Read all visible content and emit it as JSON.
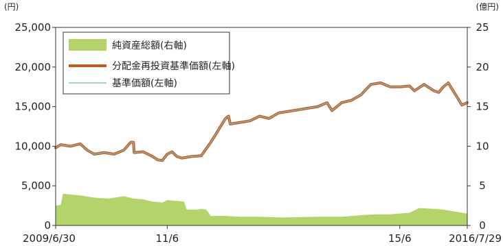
{
  "chart_data": {
    "type": "line",
    "title": "",
    "left_axis": {
      "unit_label": "(円)",
      "ylim": [
        0,
        25000
      ],
      "ticks": [
        0,
        5000,
        10000,
        15000,
        20000,
        25000
      ],
      "tick_labels": [
        "0",
        "5,000",
        "10,000",
        "15,000",
        "20,000",
        "25,000"
      ]
    },
    "right_axis": {
      "unit_label": "(億円)",
      "ylim": [
        0,
        25
      ],
      "ticks": [
        0,
        5,
        10,
        15,
        20,
        25
      ],
      "tick_labels": [
        "0",
        "5",
        "10",
        "15",
        "20",
        "25"
      ]
    },
    "x_axis": {
      "start": "2009-06-30",
      "end": "2016-07-29",
      "ticks": [
        {
          "date": "2009-06-30",
          "label": "2009/6/30"
        },
        {
          "date": "2011-06-01",
          "label": "11/6"
        },
        {
          "date": "2015-06-01",
          "label": "15/6"
        },
        {
          "date": "2016-07-29",
          "label": "2016/7/29"
        }
      ]
    },
    "grid": false,
    "legend": {
      "placement": "top-left",
      "items": [
        {
          "label": "純資産総額(右軸)",
          "kind": "area",
          "color": "#b5d36b"
        },
        {
          "label": "分配金再投資基準価額(左軸)",
          "kind": "line",
          "color": "#c8561a"
        },
        {
          "label": "基準価額(左軸)",
          "kind": "line",
          "color": "#7fc7c0"
        }
      ]
    },
    "series": [
      {
        "name": "分配金再投資基準価額(左軸)",
        "axis": "left",
        "color": "#c8561a",
        "points": [
          [
            "2009-06-30",
            9800
          ],
          [
            "2009-08-01",
            10200
          ],
          [
            "2009-10-01",
            10000
          ],
          [
            "2009-12-01",
            10300
          ],
          [
            "2010-01-15",
            9500
          ],
          [
            "2010-03-01",
            9000
          ],
          [
            "2010-05-01",
            9200
          ],
          [
            "2010-07-01",
            9000
          ],
          [
            "2010-09-01",
            9500
          ],
          [
            "2010-10-15",
            10500
          ],
          [
            "2010-11-01",
            10500
          ],
          [
            "2010-11-05",
            9200
          ],
          [
            "2011-01-01",
            9300
          ],
          [
            "2011-03-01",
            8700
          ],
          [
            "2011-04-01",
            8300
          ],
          [
            "2011-05-01",
            8200
          ],
          [
            "2011-06-01",
            9000
          ],
          [
            "2011-07-01",
            9300
          ],
          [
            "2011-08-01",
            8700
          ],
          [
            "2011-09-01",
            8500
          ],
          [
            "2011-11-01",
            8700
          ],
          [
            "2012-01-01",
            8800
          ],
          [
            "2012-03-01",
            10500
          ],
          [
            "2012-04-01",
            11500
          ],
          [
            "2012-05-01",
            12500
          ],
          [
            "2012-06-01",
            13500
          ],
          [
            "2012-06-20",
            13800
          ],
          [
            "2012-07-01",
            12800
          ],
          [
            "2012-09-01",
            13000
          ],
          [
            "2012-11-01",
            13200
          ],
          [
            "2013-01-01",
            13800
          ],
          [
            "2013-03-01",
            13500
          ],
          [
            "2013-05-01",
            14200
          ],
          [
            "2013-08-01",
            14500
          ],
          [
            "2013-11-01",
            14800
          ],
          [
            "2014-01-01",
            15000
          ],
          [
            "2014-03-01",
            15500
          ],
          [
            "2014-04-01",
            14500
          ],
          [
            "2014-06-01",
            15500
          ],
          [
            "2014-08-01",
            15800
          ],
          [
            "2014-10-01",
            16500
          ],
          [
            "2014-12-01",
            17800
          ],
          [
            "2015-02-01",
            18000
          ],
          [
            "2015-04-01",
            17500
          ],
          [
            "2015-06-01",
            17500
          ],
          [
            "2015-08-01",
            17600
          ],
          [
            "2015-09-01",
            17000
          ],
          [
            "2015-11-01",
            17800
          ],
          [
            "2016-01-01",
            17000
          ],
          [
            "2016-02-01",
            16800
          ],
          [
            "2016-03-01",
            17500
          ],
          [
            "2016-04-01",
            18000
          ],
          [
            "2016-05-01",
            17000
          ],
          [
            "2016-06-01",
            16000
          ],
          [
            "2016-06-25",
            15200
          ],
          [
            "2016-07-29",
            15500
          ]
        ]
      },
      {
        "name": "基準価額(左軸)",
        "axis": "left",
        "color": "#7fc7c0",
        "points": [
          [
            "2009-06-30",
            9800
          ],
          [
            "2009-08-01",
            10200
          ],
          [
            "2009-10-01",
            10000
          ],
          [
            "2009-12-01",
            10300
          ],
          [
            "2010-01-15",
            9500
          ],
          [
            "2010-03-01",
            9000
          ],
          [
            "2010-05-01",
            9200
          ],
          [
            "2010-07-01",
            9000
          ],
          [
            "2010-09-01",
            9500
          ],
          [
            "2010-10-15",
            10500
          ],
          [
            "2010-11-01",
            10500
          ],
          [
            "2010-11-05",
            9200
          ],
          [
            "2011-01-01",
            9300
          ],
          [
            "2011-03-01",
            8700
          ],
          [
            "2011-04-01",
            8300
          ],
          [
            "2011-05-01",
            8200
          ],
          [
            "2011-06-01",
            9000
          ],
          [
            "2011-07-01",
            9300
          ],
          [
            "2011-08-01",
            8700
          ],
          [
            "2011-09-01",
            8500
          ],
          [
            "2011-11-01",
            8700
          ],
          [
            "2012-01-01",
            8800
          ],
          [
            "2012-03-01",
            10500
          ],
          [
            "2012-04-01",
            11500
          ],
          [
            "2012-05-01",
            12500
          ],
          [
            "2012-06-01",
            13500
          ],
          [
            "2012-06-20",
            13800
          ],
          [
            "2012-07-01",
            12800
          ],
          [
            "2012-09-01",
            13000
          ],
          [
            "2012-11-01",
            13200
          ],
          [
            "2013-01-01",
            13800
          ],
          [
            "2013-03-01",
            13500
          ],
          [
            "2013-05-01",
            14200
          ],
          [
            "2013-08-01",
            14500
          ],
          [
            "2013-11-01",
            14800
          ],
          [
            "2014-01-01",
            15000
          ],
          [
            "2014-03-01",
            15500
          ],
          [
            "2014-04-01",
            14500
          ],
          [
            "2014-06-01",
            15500
          ],
          [
            "2014-08-01",
            15800
          ],
          [
            "2014-10-01",
            16500
          ],
          [
            "2014-12-01",
            17800
          ],
          [
            "2015-02-01",
            18000
          ],
          [
            "2015-04-01",
            17500
          ],
          [
            "2015-06-01",
            17500
          ],
          [
            "2015-08-01",
            17600
          ],
          [
            "2015-09-01",
            17000
          ],
          [
            "2015-11-01",
            17800
          ],
          [
            "2016-01-01",
            17000
          ],
          [
            "2016-02-01",
            16800
          ],
          [
            "2016-03-01",
            17500
          ],
          [
            "2016-04-01",
            18000
          ],
          [
            "2016-05-01",
            17000
          ],
          [
            "2016-06-01",
            16000
          ],
          [
            "2016-06-25",
            15200
          ],
          [
            "2016-07-29",
            15500
          ]
        ]
      },
      {
        "name": "純資産総額(右軸)",
        "axis": "right",
        "type": "area",
        "color": "#b5d36b",
        "points": [
          [
            "2009-06-30",
            2.5
          ],
          [
            "2009-08-01",
            2.6
          ],
          [
            "2009-08-15",
            4.0
          ],
          [
            "2009-12-01",
            3.8
          ],
          [
            "2010-01-01",
            3.7
          ],
          [
            "2010-03-01",
            3.5
          ],
          [
            "2010-06-01",
            3.4
          ],
          [
            "2010-09-01",
            3.7
          ],
          [
            "2010-11-01",
            3.4
          ],
          [
            "2011-01-01",
            3.3
          ],
          [
            "2011-03-01",
            3.0
          ],
          [
            "2011-05-01",
            2.9
          ],
          [
            "2011-06-01",
            3.2
          ],
          [
            "2011-08-01",
            3.1
          ],
          [
            "2011-09-15",
            3.0
          ],
          [
            "2011-10-01",
            2.0
          ],
          [
            "2011-12-01",
            2.0
          ],
          [
            "2012-01-01",
            2.1
          ],
          [
            "2012-02-01",
            2.0
          ],
          [
            "2012-03-01",
            1.2
          ],
          [
            "2012-06-01",
            1.2
          ],
          [
            "2012-09-01",
            1.1
          ],
          [
            "2013-01-01",
            1.1
          ],
          [
            "2013-06-01",
            1.0
          ],
          [
            "2014-01-01",
            1.1
          ],
          [
            "2014-06-01",
            1.1
          ],
          [
            "2014-10-01",
            1.3
          ],
          [
            "2015-01-01",
            1.4
          ],
          [
            "2015-04-01",
            1.4
          ],
          [
            "2015-08-01",
            1.6
          ],
          [
            "2015-10-01",
            2.2
          ],
          [
            "2016-01-01",
            2.1
          ],
          [
            "2016-03-01",
            2.0
          ],
          [
            "2016-05-01",
            1.8
          ],
          [
            "2016-07-29",
            1.5
          ]
        ]
      }
    ]
  }
}
